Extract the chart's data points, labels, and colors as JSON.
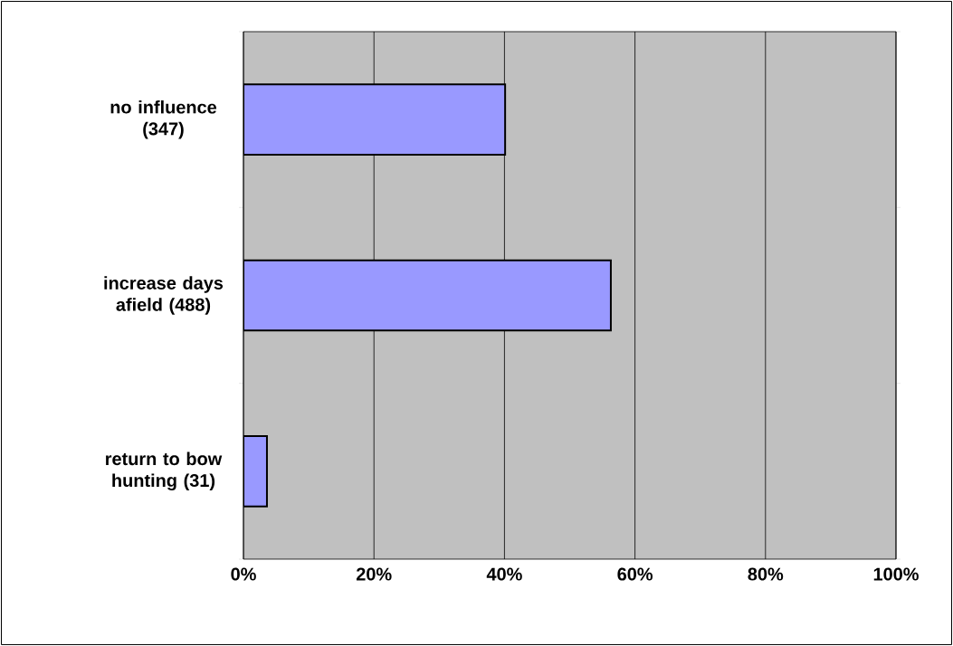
{
  "chart_data": {
    "type": "bar",
    "orientation": "horizontal",
    "categories": [
      "no influence (347)",
      "increase days afield (488)",
      "return to bow hunting (31)"
    ],
    "values": [
      40.1,
      56.3,
      3.6
    ],
    "color": "#9999ff",
    "xlim": [
      0,
      100
    ],
    "xticks": [
      {
        "value": 0,
        "label": "0%"
      },
      {
        "value": 20,
        "label": "20%"
      },
      {
        "value": 40,
        "label": "40%"
      },
      {
        "value": 60,
        "label": "60%"
      },
      {
        "value": 80,
        "label": "80%"
      },
      {
        "value": 100,
        "label": "100%"
      }
    ],
    "grid": "x"
  }
}
